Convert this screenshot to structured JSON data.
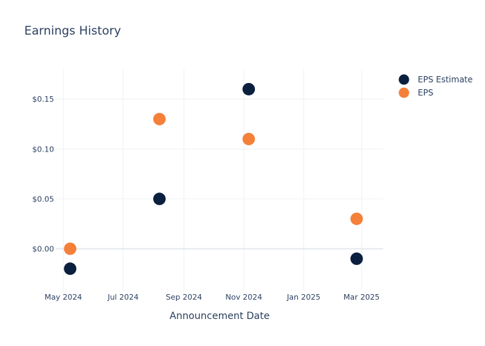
{
  "chart_data": {
    "type": "scatter",
    "title": "Earnings History",
    "xlabel": "Announcement Date",
    "ylabel": "",
    "x_axis_type": "date",
    "xlim": [
      "2024-04-23",
      "2025-03-23"
    ],
    "ylim": [
      -0.042,
      0.18
    ],
    "x_ticks": [
      {
        "date": "2024-05-01",
        "label": "May 2024"
      },
      {
        "date": "2024-07-01",
        "label": "Jul 2024"
      },
      {
        "date": "2024-09-01",
        "label": "Sep 2024"
      },
      {
        "date": "2024-11-01",
        "label": "Nov 2024"
      },
      {
        "date": "2025-01-01",
        "label": "Jan 2025"
      },
      {
        "date": "2025-03-01",
        "label": "Mar 2025"
      }
    ],
    "y_ticks": [
      {
        "value": 0.0,
        "label": "$0.00"
      },
      {
        "value": 0.05,
        "label": "$0.05"
      },
      {
        "value": 0.1,
        "label": "$0.10"
      },
      {
        "value": 0.15,
        "label": "$0.15"
      }
    ],
    "grid": true,
    "legend_position": "top-right",
    "series": [
      {
        "name": "EPS Estimate",
        "color": "#0b1f3f",
        "points": [
          {
            "x": "2024-05-08",
            "y": -0.02
          },
          {
            "x": "2024-08-07",
            "y": 0.05
          },
          {
            "x": "2024-11-06",
            "y": 0.16
          },
          {
            "x": "2025-02-24",
            "y": -0.01
          }
        ]
      },
      {
        "name": "EPS",
        "color": "#f5803a",
        "points": [
          {
            "x": "2024-05-08",
            "y": 0.0
          },
          {
            "x": "2024-08-07",
            "y": 0.13
          },
          {
            "x": "2024-11-06",
            "y": 0.11
          },
          {
            "x": "2025-02-24",
            "y": 0.03
          }
        ]
      }
    ]
  }
}
